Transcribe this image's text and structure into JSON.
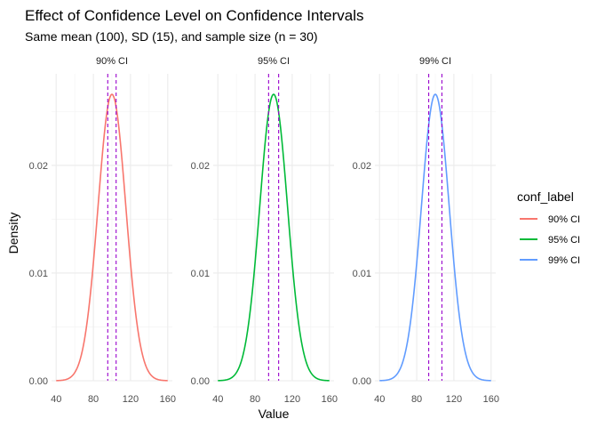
{
  "chart_data": {
    "type": "line",
    "title": "Effect of Confidence Level on Confidence Intervals",
    "subtitle": "Same mean (100), SD (15), and sample size (n = 30)",
    "xlabel": "Value",
    "ylabel": "Density",
    "xlim": [
      35,
      165
    ],
    "ylim": [
      0,
      0.0285
    ],
    "x_ticks": [
      40,
      80,
      120,
      160
    ],
    "x_tick_labels": [
      "40",
      "80",
      "120",
      "160"
    ],
    "y_ticks": [
      0.0,
      0.01,
      0.02
    ],
    "y_tick_labels": [
      "0.00",
      "0.01",
      "0.02"
    ],
    "grid": true,
    "legend": {
      "title": "conf_label",
      "position": "right",
      "entries": [
        "90% CI",
        "95% CI",
        "99% CI"
      ]
    },
    "distribution": {
      "mean": 100,
      "sd": 15
    },
    "x": [
      40,
      50,
      60,
      70,
      80,
      85,
      90,
      95,
      100,
      105,
      110,
      115,
      120,
      130,
      140,
      150,
      160
    ],
    "panels": [
      {
        "strip_label": "90% CI",
        "color": "#F8766D",
        "ci_lower": 95.5,
        "ci_upper": 104.5,
        "values": [
          0.0,
          0.0003,
          0.0011,
          0.0036,
          0.0078,
          0.0161,
          0.0213,
          0.0252,
          0.0266,
          0.0252,
          0.0213,
          0.0161,
          0.0078,
          0.0036,
          0.0011,
          0.0003,
          0.0
        ]
      },
      {
        "strip_label": "95% CI",
        "color": "#00BA38",
        "ci_lower": 94.6,
        "ci_upper": 105.4,
        "values": [
          0.0,
          0.0003,
          0.0011,
          0.0036,
          0.0078,
          0.0161,
          0.0213,
          0.0252,
          0.0266,
          0.0252,
          0.0213,
          0.0161,
          0.0078,
          0.0036,
          0.0011,
          0.0003,
          0.0
        ]
      },
      {
        "strip_label": "99% CI",
        "color": "#619CFF",
        "ci_lower": 92.9,
        "ci_upper": 107.1,
        "values": [
          0.0,
          0.0003,
          0.0011,
          0.0036,
          0.0078,
          0.0161,
          0.0213,
          0.0252,
          0.0266,
          0.0252,
          0.0213,
          0.0161,
          0.0078,
          0.0036,
          0.0011,
          0.0003,
          0.0
        ]
      }
    ],
    "ci_line_color": "#9900CC"
  }
}
